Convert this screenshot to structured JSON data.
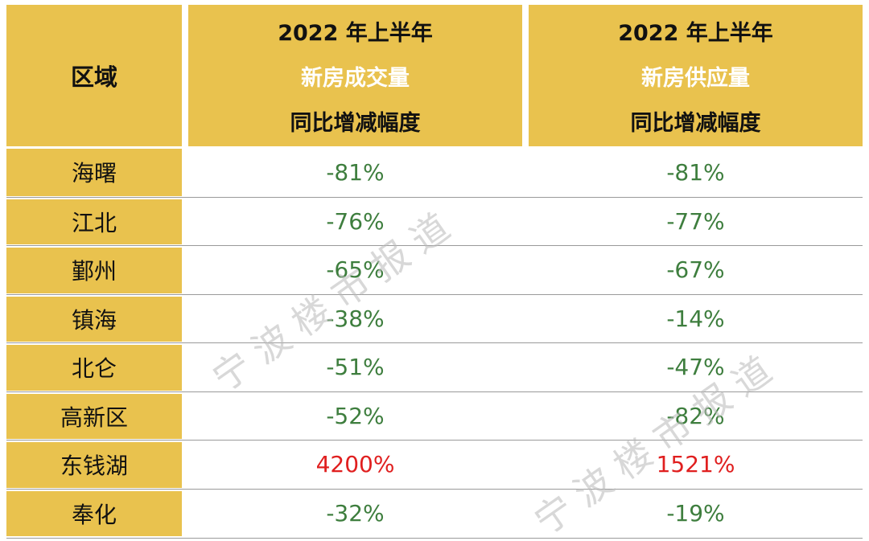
{
  "colors": {
    "gold": "#E9C24E",
    "green": "#3E7E3E",
    "red": "#E01F1F",
    "watermark": "#BABABA",
    "line": "#9A9A9A"
  },
  "watermark": {
    "text": "宁波楼市报道"
  },
  "table": {
    "header": {
      "region_label": "区域",
      "transaction": {
        "line1": "2022 年上半年",
        "line2": "新房成交量",
        "line3": "同比增减幅度"
      },
      "supply": {
        "line1": "2022 年上半年",
        "line2": "新房供应量",
        "line3": "同比增减幅度"
      }
    },
    "rows": [
      {
        "region": "海曙",
        "transaction": "-81%",
        "supply": "-81%"
      },
      {
        "region": "江北",
        "transaction": "-76%",
        "supply": "-77%"
      },
      {
        "region": "鄞州",
        "transaction": "-65%",
        "supply": "-67%"
      },
      {
        "region": "镇海",
        "transaction": "-38%",
        "supply": "-14%"
      },
      {
        "region": "北仑",
        "transaction": "-51%",
        "supply": "-47%"
      },
      {
        "region": "高新区",
        "transaction": "-52%",
        "supply": "-82%"
      },
      {
        "region": "东钱湖",
        "transaction": "4200%",
        "supply": "1521%"
      },
      {
        "region": "奉化",
        "transaction": "-32%",
        "supply": "-19%"
      }
    ]
  },
  "chart_data": {
    "type": "table",
    "title": "",
    "columns": [
      "区域",
      "2022 年上半年 新房成交量 同比增减幅度",
      "2022 年上半年 新房供应量 同比增减幅度"
    ],
    "rows": [
      [
        "海曙",
        "-81%",
        "-81%"
      ],
      [
        "江北",
        "-76%",
        "-77%"
      ],
      [
        "鄞州",
        "-65%",
        "-67%"
      ],
      [
        "镇海",
        "-38%",
        "-14%"
      ],
      [
        "北仑",
        "-51%",
        "-47%"
      ],
      [
        "高新区",
        "-52%",
        "-82%"
      ],
      [
        "东钱湖",
        "4200%",
        "1521%"
      ],
      [
        "奉化",
        "-32%",
        "-19%"
      ]
    ],
    "notes": "Negative values shown in green; 东钱湖 row positive values shown in red. Diagonal watermark 宁波楼市报道 repeated twice."
  }
}
